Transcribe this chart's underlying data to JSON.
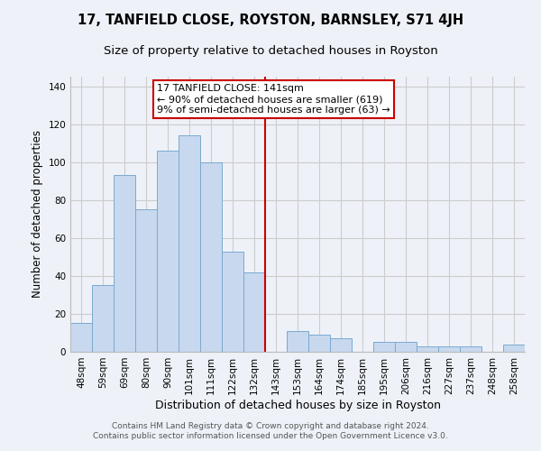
{
  "title": "17, TANFIELD CLOSE, ROYSTON, BARNSLEY, S71 4JH",
  "subtitle": "Size of property relative to detached houses in Royston",
  "xlabel": "Distribution of detached houses by size in Royston",
  "ylabel": "Number of detached properties",
  "bar_labels": [
    "48sqm",
    "59sqm",
    "69sqm",
    "80sqm",
    "90sqm",
    "101sqm",
    "111sqm",
    "122sqm",
    "132sqm",
    "143sqm",
    "153sqm",
    "164sqm",
    "174sqm",
    "185sqm",
    "195sqm",
    "206sqm",
    "216sqm",
    "227sqm",
    "237sqm",
    "248sqm",
    "258sqm"
  ],
  "bar_values": [
    15,
    35,
    93,
    75,
    106,
    114,
    100,
    53,
    42,
    0,
    11,
    9,
    7,
    0,
    5,
    5,
    3,
    3,
    3,
    0,
    4
  ],
  "bar_color": "#c8d8ee",
  "bar_edge_color": "#7aaad0",
  "vline_color": "#cc0000",
  "annotation_box_text": "17 TANFIELD CLOSE: 141sqm\n← 90% of detached houses are smaller (619)\n9% of semi-detached houses are larger (63) →",
  "annotation_box_color": "#ffffff",
  "annotation_box_edge_color": "#cc0000",
  "ylim": [
    0,
    145
  ],
  "yticks": [
    0,
    20,
    40,
    60,
    80,
    100,
    120,
    140
  ],
  "grid_color": "#cccccc",
  "background_color": "#eef2f8",
  "footer_text": "Contains HM Land Registry data © Crown copyright and database right 2024.\nContains public sector information licensed under the Open Government Licence v3.0.",
  "title_fontsize": 10.5,
  "subtitle_fontsize": 9.5,
  "xlabel_fontsize": 9,
  "ylabel_fontsize": 8.5,
  "tick_fontsize": 7.5,
  "annotation_fontsize": 8,
  "footer_fontsize": 6.5
}
